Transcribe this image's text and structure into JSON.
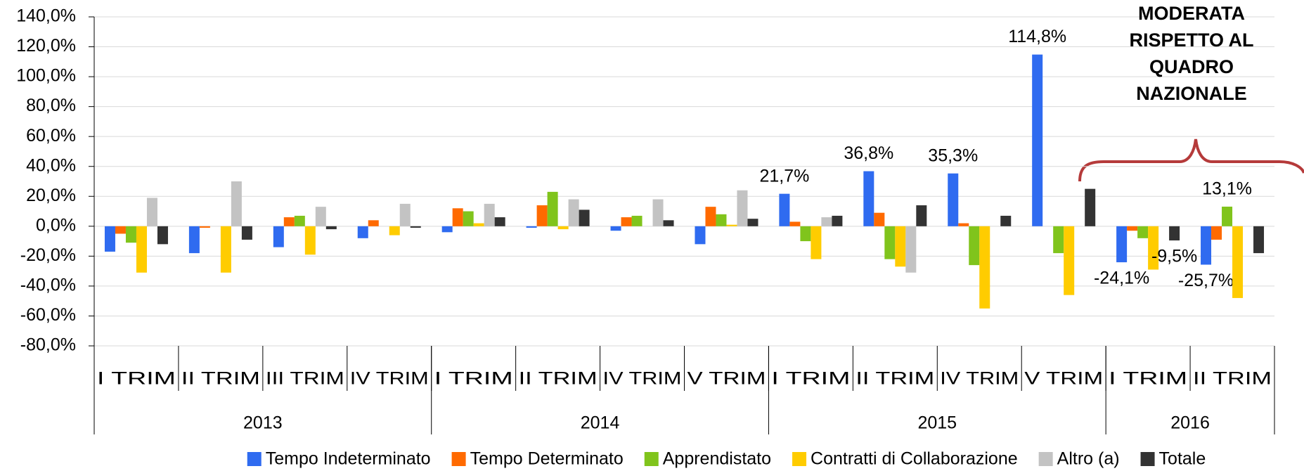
{
  "chart_data": {
    "type": "bar",
    "annotation": [
      "MODERATA",
      "RISPETTO AL",
      "QUADRO",
      "NAZIONALE"
    ],
    "categories": [
      "I TRIM",
      "II TRIM",
      "III TRIM",
      "IV TRIM",
      "I TRIM",
      "II TRIM",
      "IV TRIM",
      "V TRIM",
      "I TRIM",
      "II TRIM",
      "IV TRIM",
      "V TRIM",
      "I TRIM",
      "II TRIM"
    ],
    "groups": [
      {
        "name": "2013",
        "count": 4
      },
      {
        "name": "2014",
        "count": 4
      },
      {
        "name": "2015",
        "count": 4
      },
      {
        "name": "2016",
        "count": 2
      }
    ],
    "series": [
      {
        "name": "Tempo Indeterminato",
        "color": "#2f6bf0",
        "values": [
          -17,
          -18,
          -14,
          -8,
          -4,
          -1,
          -3,
          -12,
          21.7,
          36.8,
          35.3,
          114.8,
          -24.1,
          -25.7
        ],
        "value_labels": [
          null,
          null,
          null,
          null,
          null,
          null,
          null,
          null,
          "21,7%",
          "36,8%",
          "35,3%",
          "114,8%",
          "-24,1%",
          "-25,7%"
        ]
      },
      {
        "name": "Tempo Determinato",
        "color": "#ff6a00",
        "values": [
          -5,
          -1,
          6,
          4,
          12,
          14,
          6,
          13,
          3,
          9,
          2,
          0,
          -3,
          -9
        ]
      },
      {
        "name": "Apprendistato",
        "color": "#80c41c",
        "values": [
          -11,
          0,
          7,
          0,
          10,
          23,
          7,
          8,
          -10,
          -22,
          -26,
          -18,
          -8,
          13.1
        ],
        "value_labels": [
          null,
          null,
          null,
          null,
          null,
          null,
          null,
          null,
          null,
          null,
          null,
          null,
          null,
          "13,1%"
        ]
      },
      {
        "name": "Contratti di Collaborazione",
        "color": "#ffcc00",
        "values": [
          -31,
          -31,
          -19,
          -6,
          2,
          -2,
          0,
          1,
          -22,
          -27,
          -55,
          -46,
          -29,
          -48
        ]
      },
      {
        "name": "Altro (a)",
        "color": "#c3c3c3",
        "values": [
          19,
          30,
          13,
          15,
          15,
          18,
          18,
          24,
          6,
          -31,
          0,
          0,
          0,
          0
        ]
      },
      {
        "name": "Totale",
        "color": "#333333",
        "values": [
          -12,
          -9,
          -2,
          -1,
          6,
          11,
          4,
          5,
          7,
          14,
          7,
          25,
          -9.5,
          -18
        ],
        "value_labels": [
          null,
          null,
          null,
          null,
          null,
          null,
          null,
          null,
          null,
          null,
          null,
          null,
          "-9,5%",
          null
        ]
      }
    ],
    "ylim": [
      -80,
      140
    ],
    "yticks": [
      {
        "value": -80,
        "label": "-80,0%"
      },
      {
        "value": -60,
        "label": "-60,0%"
      },
      {
        "value": -40,
        "label": "-40,0%"
      },
      {
        "value": -20,
        "label": "-20,0%"
      },
      {
        "value": 0,
        "label": "0,0%"
      },
      {
        "value": 20,
        "label": "20,0%"
      },
      {
        "value": 40,
        "label": "40,0%"
      },
      {
        "value": 60,
        "label": "60,0%"
      },
      {
        "value": 80,
        "label": "80,0%"
      },
      {
        "value": 100,
        "label": "100,0%"
      },
      {
        "value": 120,
        "label": "120,0%"
      },
      {
        "value": 140,
        "label": "140,0%"
      }
    ],
    "grid": true
  }
}
